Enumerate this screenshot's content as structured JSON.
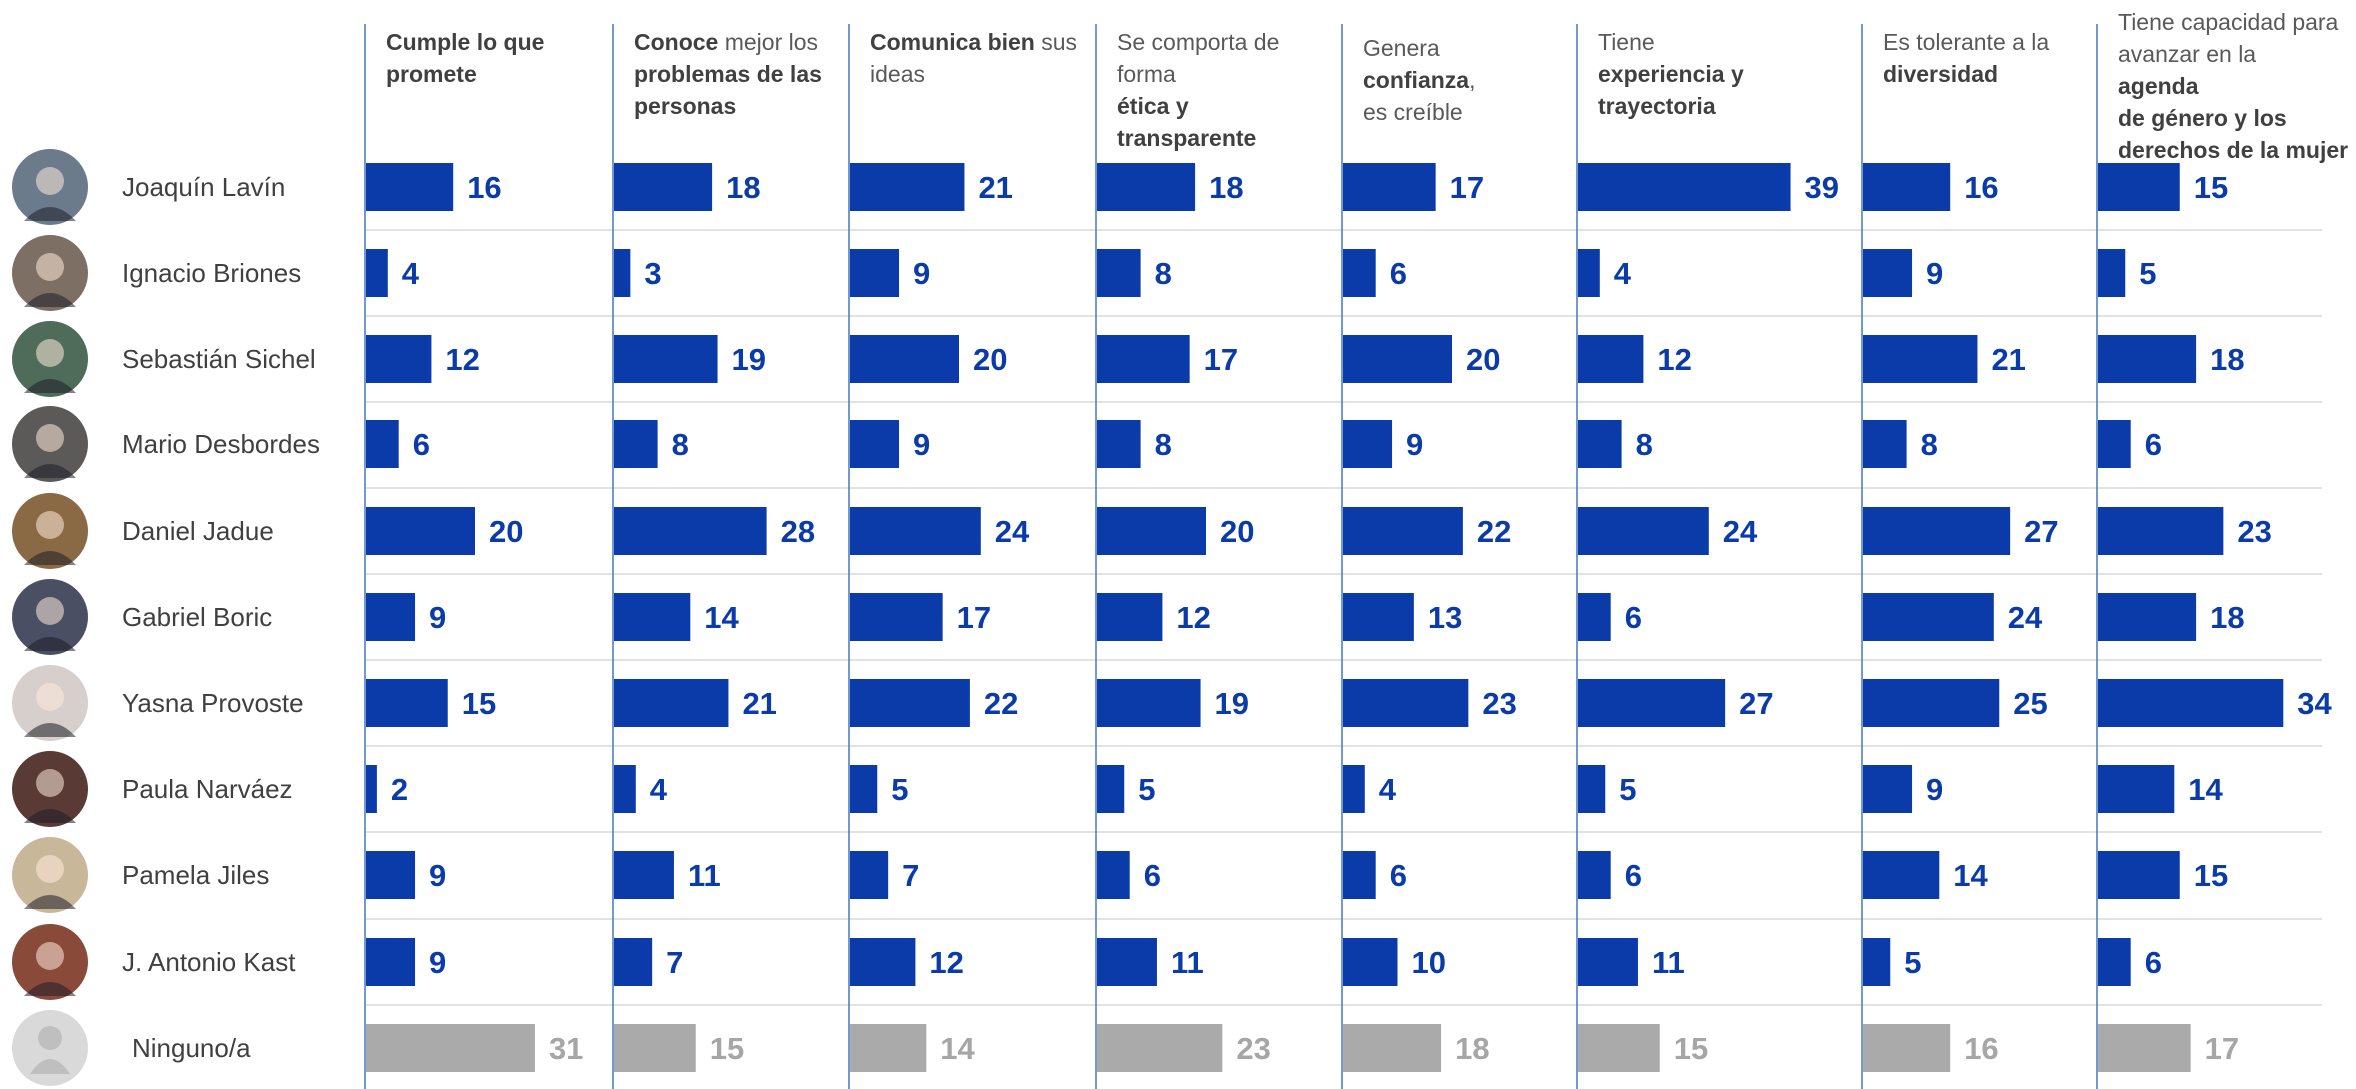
{
  "chart_data": {
    "type": "bar",
    "colors": {
      "candidate": "#0a3ba8",
      "ninguno": "#aaaaaa",
      "ninguno_label": "#a6a6a6",
      "gridline": "#d9d9d9",
      "divider": "#4f81c7"
    },
    "columns": [
      {
        "segments": [
          [
            "Cumple lo que",
            true
          ],
          [
            "promete",
            true
          ]
        ]
      },
      {
        "segments": [
          [
            "Conoce",
            true
          ],
          [
            " mejor los",
            false
          ],
          [
            "problemas de las",
            true
          ],
          [
            "personas",
            true
          ]
        ]
      },
      {
        "segments": [
          [
            "Comunica bien",
            true
          ],
          [
            " sus",
            false
          ],
          [
            "ideas",
            false
          ]
        ]
      },
      {
        "segments": [
          [
            "Se comporta de",
            false
          ],
          [
            "forma ",
            false
          ],
          [
            "ética y",
            true
          ],
          [
            "transparente",
            true
          ]
        ]
      },
      {
        "segments": [
          [
            "Genera ",
            false
          ],
          [
            "confianza",
            true
          ],
          [
            ",",
            false
          ],
          [
            "es creíble",
            false
          ]
        ]
      },
      {
        "segments": [
          [
            "Tiene ",
            false
          ],
          [
            "experiencia y",
            true
          ],
          [
            "trayectoria",
            true
          ]
        ]
      },
      {
        "segments": [
          [
            "Es tolerante a la",
            false
          ],
          [
            "diversidad",
            true
          ]
        ]
      },
      {
        "segments": [
          [
            "Tiene capacidad para",
            false
          ],
          [
            "avanzar en la ",
            false
          ],
          [
            "agenda",
            true
          ],
          [
            "de género y los",
            true
          ],
          [
            "derechos de la mujer",
            true
          ]
        ]
      }
    ],
    "categories": [
      "Joaquín Lavín",
      "Ignacio Briones",
      "Sebastián Sichel",
      "Mario Desbordes",
      "Daniel Jadue",
      "Gabriel Boric",
      "Yasna Provoste",
      "Paula Narváez",
      "Pamela Jiles",
      "J. Antonio Kast",
      "Ninguno/a"
    ],
    "values": [
      [
        16,
        18,
        21,
        18,
        17,
        39,
        16,
        15
      ],
      [
        4,
        3,
        9,
        8,
        6,
        4,
        9,
        5
      ],
      [
        12,
        19,
        20,
        17,
        20,
        12,
        21,
        18
      ],
      [
        6,
        8,
        9,
        8,
        9,
        8,
        8,
        6
      ],
      [
        20,
        28,
        24,
        20,
        22,
        24,
        27,
        23
      ],
      [
        9,
        14,
        17,
        12,
        13,
        6,
        24,
        18
      ],
      [
        15,
        21,
        22,
        19,
        23,
        27,
        25,
        34
      ],
      [
        2,
        4,
        5,
        5,
        4,
        5,
        9,
        14
      ],
      [
        9,
        11,
        7,
        6,
        6,
        6,
        14,
        15
      ],
      [
        9,
        7,
        12,
        11,
        10,
        11,
        5,
        6
      ],
      [
        31,
        15,
        14,
        23,
        18,
        15,
        16,
        17
      ]
    ],
    "avatar_colors": [
      "#6b7b8c",
      "#7d6f63",
      "#4f6b5a",
      "#5c5a58",
      "#8a6a45",
      "#4a4f63",
      "#d6cfcb",
      "#5a3a35",
      "#c9b79a",
      "#8a4a3a",
      "#d9d9d9"
    ]
  }
}
